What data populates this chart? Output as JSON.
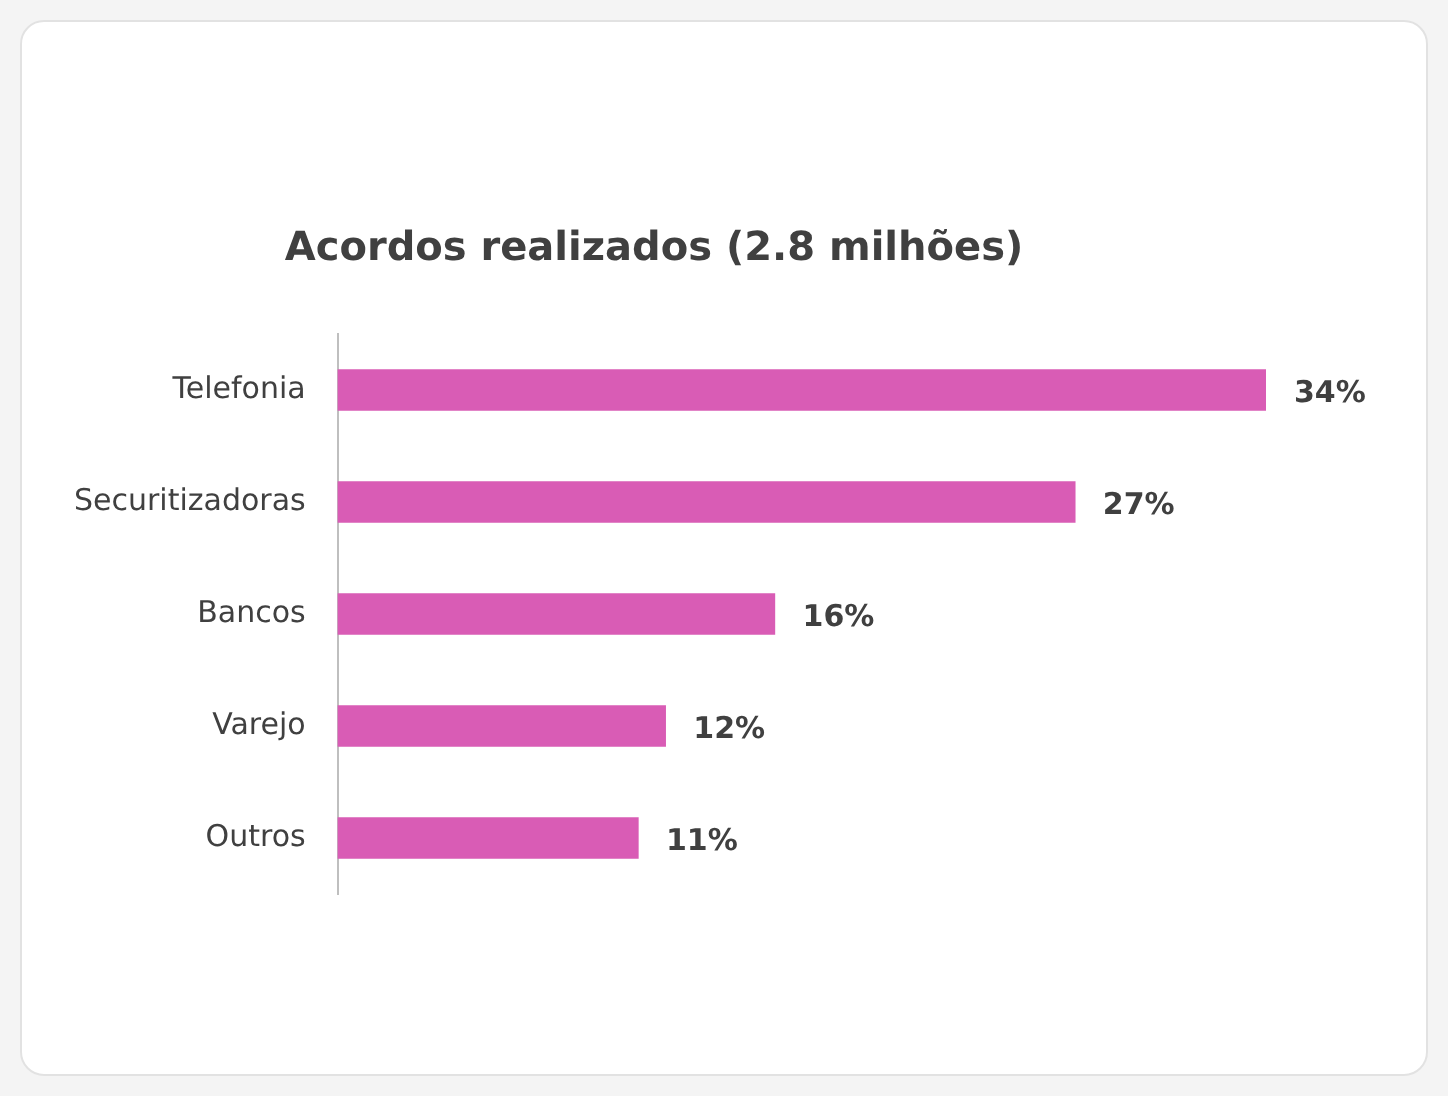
{
  "chart_data": {
    "type": "bar",
    "orientation": "horizontal",
    "title": "Acordos realizados (2.8 milhões)",
    "categories": [
      "Telefonia",
      "Securitizadoras",
      "Bancos",
      "Varejo",
      "Outros"
    ],
    "values": [
      34,
      27,
      16,
      12,
      11
    ],
    "value_labels": [
      "34%",
      "27%",
      "16%",
      "12%",
      "11%"
    ],
    "color": "#d95cb5",
    "grid": false,
    "legend": false,
    "tick_labels": "y"
  }
}
